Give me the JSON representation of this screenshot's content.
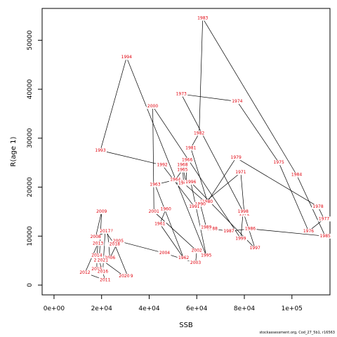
{
  "chart_data": {
    "type": "line",
    "xlabel": "SSB",
    "ylabel": "R(age 1)",
    "xlim": [
      -5000,
      116000
    ],
    "ylim": [
      -2000,
      56500
    ],
    "xticks": [
      {
        "value": 0,
        "label": "0e+00"
      },
      {
        "value": 20000,
        "label": "2e+04"
      },
      {
        "value": 40000,
        "label": "4e+04"
      },
      {
        "value": 60000,
        "label": "6e+04"
      },
      {
        "value": 80000,
        "label": "8e+04"
      },
      {
        "value": 100000,
        "label": "1e+05"
      }
    ],
    "yticks": [
      {
        "value": 0,
        "label": "0"
      },
      {
        "value": 10000,
        "label": "10000"
      },
      {
        "value": 20000,
        "label": "20000"
      },
      {
        "value": 30000,
        "label": "30000"
      },
      {
        "value": 40000,
        "label": "40000"
      },
      {
        "value": 50000,
        "label": "50000"
      }
    ],
    "line_color": "#000000",
    "label_color": "#e0000c",
    "points": [
      {
        "label": "1963",
        "x": 42500,
        "y": 20500
      },
      {
        "label": "1964",
        "x": 51000,
        "y": 21500
      },
      {
        "label": "1965",
        "x": 54000,
        "y": 23500
      },
      {
        "label": "1966",
        "x": 56000,
        "y": 25500
      },
      {
        "label": "1967",
        "x": 55500,
        "y": 21000
      },
      {
        "label": "1968",
        "x": 54000,
        "y": 24500
      },
      {
        "label": "1969",
        "x": 54500,
        "y": 20800
      },
      {
        "label": "1970",
        "x": 63500,
        "y": 17000
      },
      {
        "label": "1971",
        "x": 78500,
        "y": 23000
      },
      {
        "label": "1972",
        "x": 80000,
        "y": 14500
      },
      {
        "label": "1973",
        "x": 53500,
        "y": 39000
      },
      {
        "label": "1974",
        "x": 77000,
        "y": 37500
      },
      {
        "label": "1975",
        "x": 94500,
        "y": 25000
      },
      {
        "label": "1976",
        "x": 107000,
        "y": 11000
      },
      {
        "label": "1977",
        "x": 113500,
        "y": 13500
      },
      {
        "label": "1978",
        "x": 111000,
        "y": 16000
      },
      {
        "label": "1979",
        "x": 76500,
        "y": 26000
      },
      {
        "label": "1980",
        "x": 64500,
        "y": 17000
      },
      {
        "label": "1981",
        "x": 57500,
        "y": 28000
      },
      {
        "label": "1982",
        "x": 61000,
        "y": 31000
      },
      {
        "label": "1983",
        "x": 62500,
        "y": 54500
      },
      {
        "label": "1984",
        "x": 102000,
        "y": 22500
      },
      {
        "label": "1985",
        "x": 114000,
        "y": 10000
      },
      {
        "label": "1986",
        "x": 82500,
        "y": 11500
      },
      {
        "label": "1987",
        "x": 73500,
        "y": 11000
      },
      {
        "label": "1988",
        "x": 66500,
        "y": 11500
      },
      {
        "label": "1989",
        "x": 64000,
        "y": 11800
      },
      {
        "label": "1990",
        "x": 61500,
        "y": 16500
      },
      {
        "label": "1991",
        "x": 59000,
        "y": 16000
      },
      {
        "label": "1992",
        "x": 45500,
        "y": 24500
      },
      {
        "label": "1993",
        "x": 19500,
        "y": 27500
      },
      {
        "label": "1994",
        "x": 30500,
        "y": 46500
      },
      {
        "label": "1995",
        "x": 64000,
        "y": 6000
      },
      {
        "label": "1996",
        "x": 57500,
        "y": 21000
      },
      {
        "label": "1997",
        "x": 84500,
        "y": 7500
      },
      {
        "label": "1998",
        "x": 79500,
        "y": 15000
      },
      {
        "label": "1999",
        "x": 78500,
        "y": 9500
      },
      {
        "label": "2000",
        "x": 41500,
        "y": 36500
      },
      {
        "label": "2001",
        "x": 42000,
        "y": 15000
      },
      {
        "label": "2002",
        "x": 60000,
        "y": 7000
      },
      {
        "label": "2003",
        "x": 59500,
        "y": 4500
      },
      {
        "label": "2004",
        "x": 46500,
        "y": 6500
      },
      {
        "label": "2005",
        "x": 27000,
        "y": 9000
      },
      {
        "label": "2006",
        "x": 23500,
        "y": 5500
      },
      {
        "label": "2007",
        "x": 22500,
        "y": 11000
      },
      {
        "label": "2008",
        "x": 17500,
        "y": 9800
      },
      {
        "label": "2009",
        "x": 20000,
        "y": 15000
      },
      {
        "label": "2010",
        "x": 19000,
        "y": 5000
      },
      {
        "label": "2011",
        "x": 21500,
        "y": 1000
      },
      {
        "label": "2012",
        "x": 13000,
        "y": 2500
      },
      {
        "label": "2013",
        "x": 18500,
        "y": 8500
      },
      {
        "label": "2014",
        "x": 18000,
        "y": 6000
      },
      {
        "label": "2015",
        "x": 18000,
        "y": 3200
      },
      {
        "label": "2016",
        "x": 20500,
        "y": 2700
      },
      {
        "label": "2017",
        "x": 21500,
        "y": 11000
      },
      {
        "label": "2018",
        "x": 25500,
        "y": 8300
      },
      {
        "label": "2019",
        "x": 31000,
        "y": 1800
      },
      {
        "label": "2020",
        "x": 29500,
        "y": 1800
      },
      {
        "label": "2021",
        "x": 20500,
        "y": 5000
      },
      {
        "label": "1960",
        "x": 47000,
        "y": 15500
      },
      {
        "label": "1961",
        "x": 44500,
        "y": 12500
      },
      {
        "label": "1962",
        "x": 54500,
        "y": 5500
      }
    ],
    "path_order": [
      "1960",
      "1961",
      "1962",
      "1963",
      "1964",
      "1965",
      "1966",
      "1967",
      "1968",
      "1969",
      "1970",
      "1971",
      "1972",
      "1973",
      "1974",
      "1975",
      "1976",
      "1977",
      "1978",
      "1979",
      "1980",
      "1981",
      "1982",
      "1983",
      "1984",
      "1985",
      "1986",
      "1987",
      "1988",
      "1989",
      "1990",
      "1991",
      "1992",
      "1993",
      "1994",
      "1995",
      "1996",
      "1997",
      "1998",
      "1999",
      "2000",
      "2001",
      "2002",
      "2003",
      "2004",
      "2005",
      "2006",
      "2007",
      "2008",
      "2009",
      "2010",
      "2011",
      "2012",
      "2013",
      "2014",
      "2015",
      "2016",
      "2017",
      "2018",
      "2019",
      "2020",
      "2021"
    ]
  },
  "credit": "stockassessment.org, Cod_27_5b1, r16563"
}
